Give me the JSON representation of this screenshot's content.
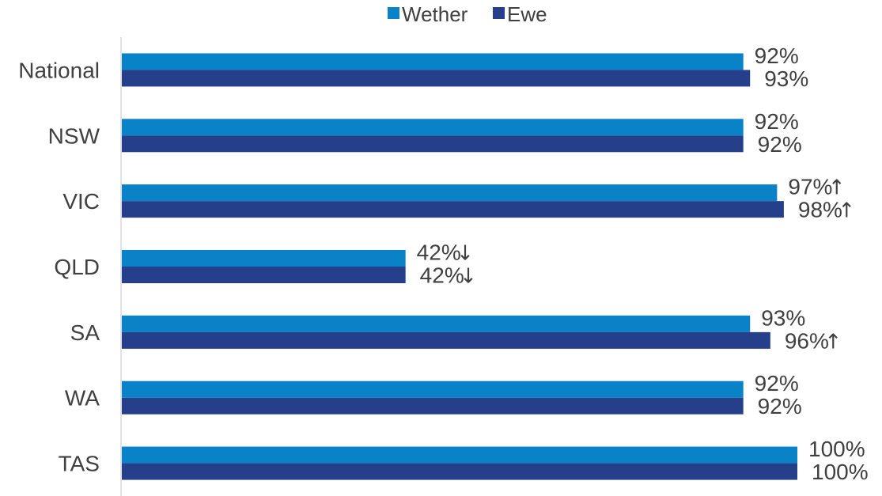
{
  "chart_data": {
    "type": "bar",
    "orientation": "horizontal",
    "categories": [
      "National",
      "NSW",
      "VIC",
      "QLD",
      "SA",
      "WA",
      "TAS"
    ],
    "series": [
      {
        "name": "Wether",
        "color": "#0a82c8",
        "values": [
          92,
          92,
          97,
          42,
          93,
          92,
          100
        ],
        "labels": [
          "92%",
          "92%",
          "97%",
          "42%",
          "93%",
          "92%",
          "100%"
        ],
        "arrows": [
          "",
          "",
          "↑",
          "↓",
          "",
          "",
          ""
        ]
      },
      {
        "name": "Ewe",
        "color": "#253f8a",
        "values": [
          93,
          92,
          98,
          42,
          96,
          92,
          100
        ],
        "labels": [
          "93%",
          "92%",
          "98%",
          "42%",
          "96%",
          "92%",
          "100%"
        ],
        "arrows": [
          "",
          "",
          "↑",
          "↓",
          "↑",
          "",
          ""
        ]
      }
    ],
    "xlim": [
      0,
      100
    ],
    "title": "",
    "xlabel": "",
    "ylabel": "",
    "grid": false,
    "legend_position": "top-center"
  }
}
